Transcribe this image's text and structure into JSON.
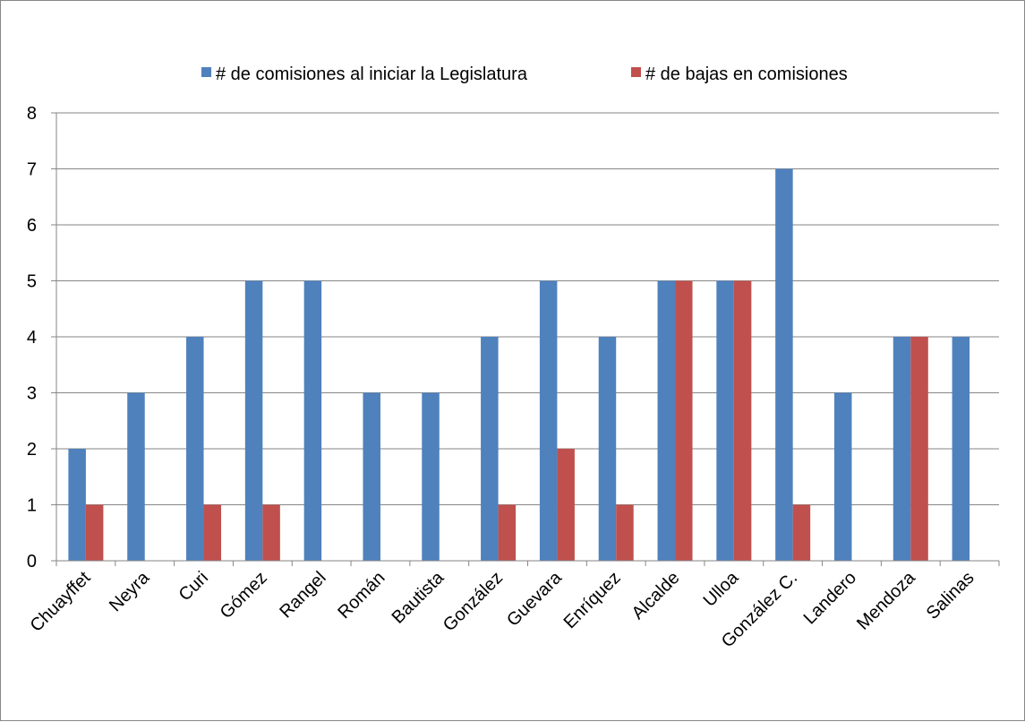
{
  "chart_data": {
    "type": "bar",
    "categories": [
      "Chuayffet",
      "Neyra",
      "Curi",
      "Gómez",
      "Rangel",
      "Román",
      "Bautista",
      "González",
      "Guevara",
      "Enríquez",
      "Alcalde",
      "Ulloa",
      "González C.",
      "Landero",
      "Mendoza",
      "Salinas"
    ],
    "series": [
      {
        "name": "# de comisiones al iniciar la Legislatura",
        "color": "#4f81bd",
        "values": [
          2,
          3,
          4,
          5,
          5,
          3,
          3,
          4,
          5,
          4,
          5,
          5,
          7,
          3,
          4,
          4
        ]
      },
      {
        "name": "# de bajas en comisiones",
        "color": "#c0504d",
        "values": [
          1,
          0,
          1,
          1,
          0,
          0,
          0,
          1,
          2,
          1,
          5,
          5,
          1,
          0,
          4,
          0
        ]
      }
    ],
    "ylim": [
      0,
      8
    ],
    "yticks": [
      "0",
      "1",
      "2",
      "3",
      "4",
      "5",
      "6",
      "7",
      "8"
    ],
    "grid": true,
    "legend_position": "top",
    "title": "",
    "xlabel": "",
    "ylabel": ""
  }
}
